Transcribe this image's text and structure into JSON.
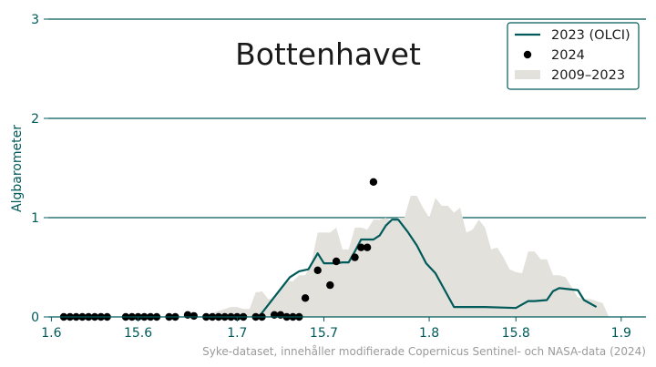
{
  "chart_data": {
    "type": "line",
    "title": "Bottenhavet",
    "ylabel": "Algbarometer",
    "xlabel": "",
    "credit": "Syke-dataset, innehåller modifierade Copernicus Sentinel- och NASA-data (2024)",
    "x_tick_labels": [
      "1.6",
      "15.6",
      "1.7",
      "15.7",
      "1.8",
      "15.8",
      "1.9"
    ],
    "x_tick_days": [
      0,
      14,
      30,
      44,
      61,
      75,
      92
    ],
    "y_ticks": [
      0,
      1,
      2,
      3
    ],
    "xlim": [
      -0.5,
      96
    ],
    "ylim": [
      0,
      3
    ],
    "grid": "horizontal",
    "legend_position": "top-right",
    "legend": [
      {
        "label": "2023 (OLCI)",
        "kind": "line"
      },
      {
        "label": "2024",
        "kind": "dot"
      },
      {
        "label": "2009–2023",
        "kind": "band"
      }
    ],
    "colors": {
      "line": "#005a5a",
      "dots": "#000000",
      "band": "#e2e1dc",
      "grid": "#005a5a",
      "axis": "#005a5a"
    },
    "series_2023_olci": {
      "x": [
        33.5,
        35,
        36.5,
        38.5,
        40,
        41.5,
        43,
        44,
        45,
        46,
        47,
        48,
        49,
        50,
        51,
        52,
        53,
        54,
        55,
        56,
        57.5,
        59,
        60.5,
        62,
        65,
        70,
        75,
        77,
        78,
        80,
        81,
        82,
        85,
        86,
        88
      ],
      "y": [
        0.0,
        0.12,
        0.24,
        0.4,
        0.46,
        0.48,
        0.64,
        0.54,
        0.54,
        0.54,
        0.55,
        0.55,
        0.66,
        0.78,
        0.78,
        0.78,
        0.82,
        0.92,
        0.98,
        0.98,
        0.86,
        0.72,
        0.54,
        0.44,
        0.1,
        0.1,
        0.09,
        0.16,
        0.16,
        0.17,
        0.26,
        0.29,
        0.27,
        0.17,
        0.1
      ]
    },
    "series_2024": {
      "x": [
        2,
        3,
        4,
        5,
        6,
        7,
        8,
        9,
        12,
        13,
        14,
        15,
        16,
        17,
        19,
        20,
        22,
        23,
        25,
        26,
        27,
        28,
        29,
        30,
        31,
        33,
        34,
        36,
        37,
        38,
        39,
        40,
        41,
        43,
        45,
        46,
        49,
        50,
        51,
        52
      ],
      "y": [
        0,
        0,
        0,
        0,
        0,
        0,
        0,
        0,
        0,
        0,
        0,
        0,
        0,
        0,
        0,
        0,
        0.02,
        0.01,
        0,
        0,
        0,
        0,
        0,
        0,
        0,
        0,
        0,
        0.02,
        0.02,
        0,
        0,
        0,
        0.19,
        0.47,
        0.32,
        0.56,
        0.6,
        0.7,
        0.7,
        1.36
      ]
    },
    "band_2009_2023": {
      "x": [
        25,
        27,
        29,
        30,
        31,
        32,
        33,
        33.5,
        34,
        35,
        36,
        37,
        38,
        39,
        40,
        41,
        42,
        43,
        44,
        45,
        46,
        47,
        48,
        49,
        50,
        51,
        52,
        53,
        54,
        55,
        56,
        57,
        58,
        59,
        60,
        61,
        62,
        63,
        64,
        65,
        66,
        67,
        68,
        69,
        70,
        71,
        72,
        73,
        74,
        75,
        76,
        77,
        78,
        79,
        80,
        81,
        82,
        83,
        84,
        85,
        86,
        87,
        88,
        89,
        90
      ],
      "upper": [
        0.02,
        0.06,
        0.1,
        0.1,
        0.08,
        0.08,
        0.25,
        0.25,
        0.26,
        0.18,
        0.18,
        0.3,
        0.36,
        0.36,
        0.42,
        0.42,
        0.55,
        0.85,
        0.85,
        0.85,
        0.9,
        0.68,
        0.68,
        0.9,
        0.9,
        0.88,
        0.98,
        0.98,
        1.0,
        0.96,
        1.0,
        1.0,
        1.22,
        1.22,
        1.1,
        1.0,
        1.2,
        1.12,
        1.12,
        1.05,
        1.1,
        0.85,
        0.88,
        0.98,
        0.9,
        0.68,
        0.7,
        0.6,
        0.48,
        0.45,
        0.44,
        0.66,
        0.66,
        0.58,
        0.58,
        0.42,
        0.42,
        0.4,
        0.3,
        0.2,
        0.18,
        0.18,
        0.16,
        0.14,
        0.0
      ],
      "lower": [
        0,
        0,
        0,
        0,
        0,
        0,
        0,
        0,
        0,
        0,
        0,
        0,
        0,
        0,
        0,
        0,
        0,
        0,
        0,
        0,
        0,
        0,
        0,
        0,
        0,
        0,
        0,
        0,
        0,
        0,
        0,
        0,
        0,
        0,
        0,
        0,
        0,
        0,
        0,
        0,
        0,
        0,
        0,
        0,
        0,
        0,
        0,
        0,
        0,
        0,
        0,
        0,
        0,
        0,
        0,
        0,
        0,
        0,
        0,
        0,
        0,
        0,
        0,
        0,
        0
      ]
    }
  }
}
